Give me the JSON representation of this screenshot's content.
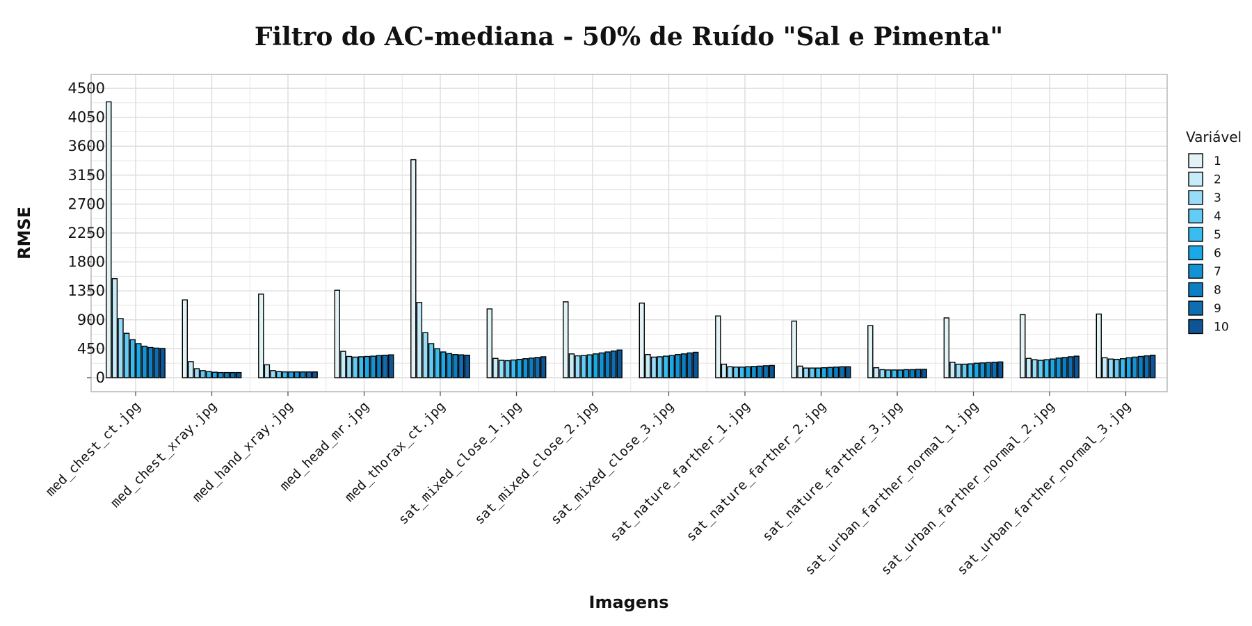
{
  "chart_data": {
    "type": "bar",
    "title": "Filtro do AC-mediana - 50% de Ruído \"Sal e Pimenta\"",
    "xlabel": "Imagens",
    "ylabel": "RMSE",
    "ylim": [
      -200,
      4800
    ],
    "yticks": [
      0,
      450,
      900,
      1350,
      1800,
      2250,
      2700,
      3150,
      3600,
      4050,
      4500
    ],
    "grid": true,
    "legend": {
      "title": "Variável",
      "placement": "right"
    },
    "categories": [
      "med_chest_ct.jpg",
      "med_chest_xray.jpg",
      "med_hand_xray.jpg",
      "med_head_mr.jpg",
      "med_thorax_ct.jpg",
      "sat_mixed_close_1.jpg",
      "sat_mixed_close_2.jpg",
      "sat_mixed_close_3.jpg",
      "sat_nature_farther_1.jpg",
      "sat_nature_farther_2.jpg",
      "sat_nature_farther_3.jpg",
      "sat_urban_farther_normal_1.jpg",
      "sat_urban_farther_normal_2.jpg",
      "sat_urban_farther_normal_3.jpg"
    ],
    "series": [
      {
        "name": "1",
        "color": "#e2f3f5",
        "values": [
          4290,
          1210,
          1300,
          1360,
          3390,
          1070,
          1180,
          1160,
          960,
          880,
          810,
          930,
          980,
          990
        ]
      },
      {
        "name": "2",
        "color": "#c6ebf9",
        "values": [
          1540,
          250,
          200,
          410,
          1170,
          300,
          370,
          360,
          210,
          180,
          155,
          240,
          300,
          310
        ]
      },
      {
        "name": "3",
        "color": "#98dcf8",
        "values": [
          920,
          140,
          110,
          330,
          700,
          270,
          340,
          320,
          170,
          150,
          125,
          210,
          280,
          290
        ]
      },
      {
        "name": "4",
        "color": "#63cbf4",
        "values": [
          690,
          110,
          95,
          320,
          530,
          265,
          345,
          325,
          165,
          150,
          120,
          210,
          270,
          285
        ]
      },
      {
        "name": "5",
        "color": "#3bbcef",
        "values": [
          590,
          95,
          90,
          325,
          450,
          275,
          355,
          335,
          165,
          150,
          120,
          215,
          280,
          295
        ]
      },
      {
        "name": "6",
        "color": "#1ba8e6",
        "values": [
          530,
          85,
          90,
          330,
          400,
          285,
          370,
          345,
          170,
          155,
          120,
          225,
          290,
          310
        ]
      },
      {
        "name": "7",
        "color": "#1393d4",
        "values": [
          490,
          80,
          90,
          335,
          375,
          295,
          385,
          360,
          175,
          160,
          125,
          230,
          305,
          320
        ]
      },
      {
        "name": "8",
        "color": "#0a7fc3",
        "values": [
          470,
          80,
          90,
          345,
          360,
          305,
          400,
          370,
          180,
          165,
          125,
          235,
          315,
          330
        ]
      },
      {
        "name": "9",
        "color": "#0f6eb2",
        "values": [
          460,
          80,
          90,
          350,
          355,
          315,
          415,
          385,
          185,
          170,
          130,
          240,
          325,
          340
        ]
      },
      {
        "name": "10",
        "color": "#0d5595",
        "values": [
          455,
          80,
          90,
          355,
          350,
          325,
          430,
          395,
          190,
          170,
          130,
          245,
          335,
          350
        ]
      }
    ]
  }
}
